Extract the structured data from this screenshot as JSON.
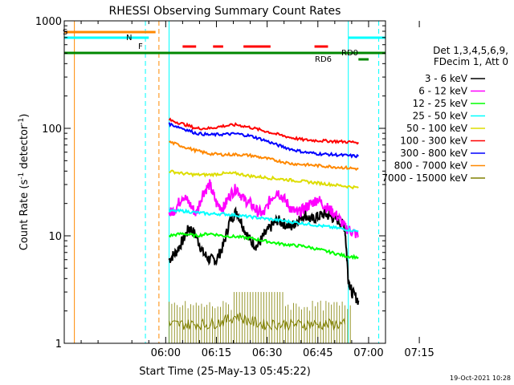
{
  "chart_data": {
    "type": "line",
    "title": "RHESSI Observing Summary Count Rates",
    "xlabel": "Start Time (25-May-13 05:45:22)",
    "ylabel_main": "Count Rate (s",
    "ylabel_sup1": "-1",
    "ylabel_mid": " detector",
    "ylabel_sup2": "-1",
    "ylabel_end": ")",
    "yscale": "log",
    "ylim": [
      1,
      1000
    ],
    "xlim_minutes": [
      5.0,
      100.0
    ],
    "x_ticks": [
      {
        "label": "06:00",
        "min": 35
      },
      {
        "label": "06:15",
        "min": 50
      },
      {
        "label": "06:30",
        "min": 65
      },
      {
        "label": "06:45",
        "min": 80
      },
      {
        "label": "07:00",
        "min": 95
      },
      {
        "label": "07:15",
        "min": 110
      }
    ],
    "y_ticks": [
      {
        "label": "1000",
        "v": 1000
      },
      {
        "label": "100",
        "v": 100
      },
      {
        "label": "10",
        "v": 10
      },
      {
        "label": "1",
        "v": 1
      }
    ],
    "legend_header": [
      "Det 1,3,4,5,6,9,",
      "FDecim 1, Att 0"
    ],
    "series": [
      {
        "name": "3 - 6 keV",
        "color": "#000000",
        "points": [
          [
            36,
            6
          ],
          [
            38,
            7
          ],
          [
            40,
            9
          ],
          [
            42,
            12
          ],
          [
            44,
            10
          ],
          [
            46,
            7
          ],
          [
            48,
            6
          ],
          [
            50,
            6
          ],
          [
            52,
            8
          ],
          [
            54,
            14
          ],
          [
            56,
            17
          ],
          [
            58,
            12
          ],
          [
            60,
            9
          ],
          [
            62,
            8
          ],
          [
            64,
            10
          ],
          [
            66,
            12
          ],
          [
            68,
            14
          ],
          [
            70,
            13
          ],
          [
            72,
            12
          ],
          [
            74,
            14
          ],
          [
            76,
            16
          ],
          [
            78,
            14
          ],
          [
            80,
            15
          ],
          [
            82,
            16
          ],
          [
            84,
            15
          ],
          [
            86,
            14
          ],
          [
            88,
            12
          ],
          [
            89,
            4
          ],
          [
            90,
            3
          ],
          [
            92,
            2.5
          ]
        ]
      },
      {
        "name": "6 - 12 keV",
        "color": "#ff00ff",
        "points": [
          [
            36,
            16
          ],
          [
            38,
            18
          ],
          [
            40,
            24
          ],
          [
            42,
            20
          ],
          [
            44,
            16
          ],
          [
            46,
            25
          ],
          [
            48,
            30
          ],
          [
            50,
            20
          ],
          [
            52,
            18
          ],
          [
            54,
            24
          ],
          [
            56,
            28
          ],
          [
            58,
            22
          ],
          [
            60,
            20
          ],
          [
            62,
            17
          ],
          [
            64,
            16
          ],
          [
            66,
            22
          ],
          [
            68,
            26
          ],
          [
            70,
            22
          ],
          [
            72,
            18
          ],
          [
            74,
            16
          ],
          [
            76,
            18
          ],
          [
            78,
            20
          ],
          [
            80,
            22
          ],
          [
            82,
            19
          ],
          [
            84,
            17
          ],
          [
            86,
            15
          ],
          [
            88,
            12
          ],
          [
            90,
            11
          ],
          [
            92,
            10
          ]
        ]
      },
      {
        "name": "12 - 25 keV",
        "color": "#00ff00",
        "points": [
          [
            36,
            10
          ],
          [
            40,
            10.5
          ],
          [
            44,
            10
          ],
          [
            48,
            10.5
          ],
          [
            52,
            10
          ],
          [
            56,
            9.8
          ],
          [
            60,
            9.5
          ],
          [
            64,
            9
          ],
          [
            68,
            8.5
          ],
          [
            72,
            8.2
          ],
          [
            76,
            8
          ],
          [
            80,
            7.5
          ],
          [
            84,
            7
          ],
          [
            88,
            6.5
          ],
          [
            92,
            6.3
          ]
        ]
      },
      {
        "name": "25 - 50 keV",
        "color": "#00ffff",
        "points": [
          [
            36,
            17
          ],
          [
            40,
            17
          ],
          [
            44,
            16.5
          ],
          [
            48,
            16
          ],
          [
            52,
            16
          ],
          [
            56,
            15.5
          ],
          [
            60,
            15
          ],
          [
            64,
            14.5
          ],
          [
            68,
            14
          ],
          [
            72,
            13.5
          ],
          [
            76,
            13
          ],
          [
            80,
            12.5
          ],
          [
            84,
            12
          ],
          [
            88,
            11.5
          ],
          [
            92,
            11
          ]
        ]
      },
      {
        "name": "50 - 100 keV",
        "color": "#dddd00",
        "points": [
          [
            36,
            40
          ],
          [
            40,
            38
          ],
          [
            44,
            37
          ],
          [
            48,
            37
          ],
          [
            52,
            38
          ],
          [
            56,
            38
          ],
          [
            60,
            36
          ],
          [
            64,
            35
          ],
          [
            68,
            34
          ],
          [
            72,
            33
          ],
          [
            76,
            32
          ],
          [
            80,
            31
          ],
          [
            84,
            30
          ],
          [
            88,
            29
          ],
          [
            92,
            28
          ]
        ]
      },
      {
        "name": "100 - 300 keV",
        "color": "#ff0000",
        "points": [
          [
            36,
            120
          ],
          [
            40,
            110
          ],
          [
            44,
            100
          ],
          [
            48,
            100
          ],
          [
            52,
            105
          ],
          [
            56,
            108
          ],
          [
            60,
            102
          ],
          [
            64,
            95
          ],
          [
            68,
            88
          ],
          [
            72,
            82
          ],
          [
            76,
            78
          ],
          [
            80,
            77
          ],
          [
            84,
            76
          ],
          [
            88,
            75
          ],
          [
            92,
            74
          ]
        ]
      },
      {
        "name": "300 - 800 keV",
        "color": "#0000ff",
        "points": [
          [
            36,
            110
          ],
          [
            40,
            100
          ],
          [
            44,
            90
          ],
          [
            48,
            87
          ],
          [
            52,
            88
          ],
          [
            56,
            89
          ],
          [
            60,
            85
          ],
          [
            64,
            78
          ],
          [
            68,
            70
          ],
          [
            72,
            64
          ],
          [
            76,
            60
          ],
          [
            80,
            58
          ],
          [
            84,
            57
          ],
          [
            88,
            56
          ],
          [
            92,
            55
          ]
        ]
      },
      {
        "name": "800 - 7000 keV",
        "color": "#ff8800",
        "points": [
          [
            36,
            75
          ],
          [
            40,
            68
          ],
          [
            44,
            62
          ],
          [
            48,
            58
          ],
          [
            52,
            57
          ],
          [
            56,
            57
          ],
          [
            60,
            56
          ],
          [
            64,
            53
          ],
          [
            68,
            50
          ],
          [
            72,
            47
          ],
          [
            76,
            46
          ],
          [
            80,
            45
          ],
          [
            84,
            44
          ],
          [
            88,
            43
          ],
          [
            92,
            42
          ]
        ]
      },
      {
        "name": "7000 - 15000 keV",
        "color": "#808000",
        "points": [
          [
            36,
            1.5
          ],
          [
            40,
            1.5
          ],
          [
            44,
            1.5
          ],
          [
            48,
            1.5
          ],
          [
            52,
            1.6
          ],
          [
            56,
            1.8
          ],
          [
            60,
            1.6
          ],
          [
            64,
            1.5
          ],
          [
            68,
            1.5
          ],
          [
            72,
            1.5
          ],
          [
            76,
            1.5
          ],
          [
            80,
            1.5
          ],
          [
            84,
            1.5
          ],
          [
            88,
            1.5
          ]
        ]
      }
    ],
    "flag_labels": {
      "s": "S",
      "n": "N",
      "f": "F",
      "rd0": "RD0",
      "rd6": "RD6"
    },
    "timestamp": "19-Oct-2021 10:28"
  }
}
